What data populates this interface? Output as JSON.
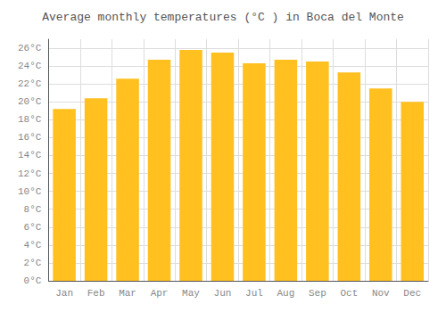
{
  "chart_data": {
    "type": "bar",
    "title": "Average monthly temperatures (°C ) in Boca del Monte",
    "categories": [
      "Jan",
      "Feb",
      "Mar",
      "Apr",
      "May",
      "Jun",
      "Jul",
      "Aug",
      "Sep",
      "Oct",
      "Nov",
      "Dec"
    ],
    "values": [
      19.2,
      20.4,
      22.6,
      24.7,
      25.8,
      25.5,
      24.3,
      24.7,
      24.5,
      23.3,
      21.5,
      20.0
    ],
    "color": "#FFC020",
    "ylim": [
      0,
      27
    ],
    "yticks": [
      {
        "value": 0,
        "label": "0°C"
      },
      {
        "value": 2,
        "label": "2°C"
      },
      {
        "value": 4,
        "label": "4°C"
      },
      {
        "value": 6,
        "label": "6°C"
      },
      {
        "value": 8,
        "label": "8°C"
      },
      {
        "value": 10,
        "label": "10°C"
      },
      {
        "value": 12,
        "label": "12°C"
      },
      {
        "value": 14,
        "label": "14°C"
      },
      {
        "value": 16,
        "label": "16°C"
      },
      {
        "value": 18,
        "label": "18°C"
      },
      {
        "value": 20,
        "label": "20°C"
      },
      {
        "value": 22,
        "label": "22°C"
      },
      {
        "value": 24,
        "label": "24°C"
      },
      {
        "value": 26,
        "label": "26°C"
      }
    ],
    "grid": true
  }
}
